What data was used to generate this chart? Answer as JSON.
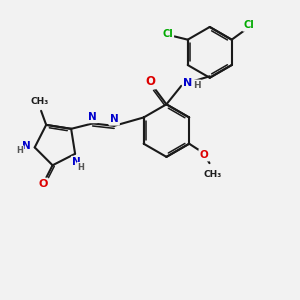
{
  "bg_color": "#f2f2f2",
  "bond_color": "#1a1a1a",
  "bond_width": 1.5,
  "atom_colors": {
    "N": "#0000cc",
    "O": "#dd0000",
    "Cl": "#00aa00",
    "H": "#555555",
    "C": "#1a1a1a"
  },
  "font_size": 7.5,
  "small_font": 6.0,
  "xlim": [
    0,
    10
  ],
  "ylim": [
    0,
    10
  ]
}
